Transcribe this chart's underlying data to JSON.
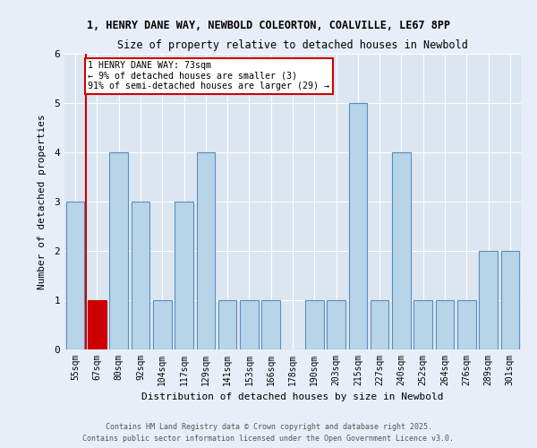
{
  "title1": "1, HENRY DANE WAY, NEWBOLD COLEORTON, COALVILLE, LE67 8PP",
  "title2": "Size of property relative to detached houses in Newbold",
  "xlabel": "Distribution of detached houses by size in Newbold",
  "ylabel": "Number of detached properties",
  "categories": [
    "55sqm",
    "67sqm",
    "80sqm",
    "92sqm",
    "104sqm",
    "117sqm",
    "129sqm",
    "141sqm",
    "153sqm",
    "166sqm",
    "178sqm",
    "190sqm",
    "203sqm",
    "215sqm",
    "227sqm",
    "240sqm",
    "252sqm",
    "264sqm",
    "276sqm",
    "289sqm",
    "301sqm"
  ],
  "values": [
    3,
    1,
    4,
    3,
    1,
    3,
    4,
    1,
    1,
    1,
    0,
    1,
    1,
    5,
    1,
    4,
    1,
    1,
    1,
    2,
    2
  ],
  "bar_color": "#b8d4e8",
  "bar_edge_color": "#5a8fbe",
  "highlight_bar_index": 1,
  "highlight_color": "#cc0000",
  "annotation_text": "1 HENRY DANE WAY: 73sqm\n← 9% of detached houses are smaller (3)\n91% of semi-detached houses are larger (29) →",
  "annotation_box_color": "#ffffff",
  "annotation_box_edge": "#cc0000",
  "footer1": "Contains HM Land Registry data © Crown copyright and database right 2025.",
  "footer2": "Contains public sector information licensed under the Open Government Licence v3.0.",
  "ylim": [
    0,
    6
  ],
  "background_color": "#e8eef8",
  "plot_background": "#dce6f0"
}
